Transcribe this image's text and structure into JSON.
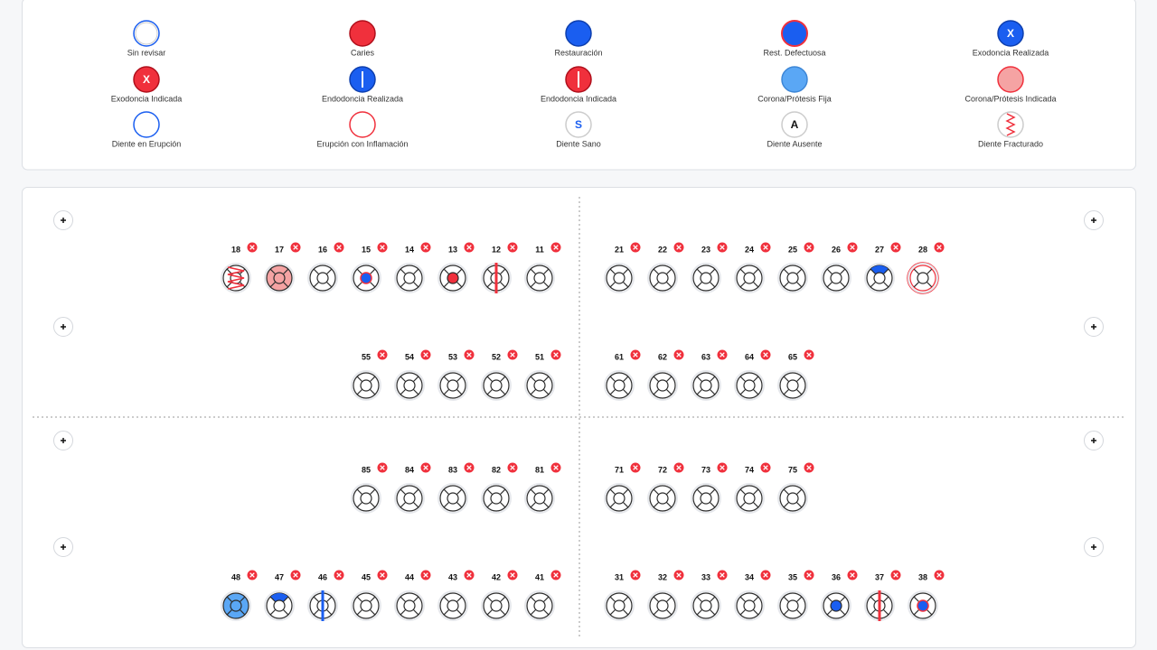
{
  "legend": [
    {
      "label": "Sin revisar",
      "symbol": "sin-revisar"
    },
    {
      "label": "Caries",
      "symbol": "caries"
    },
    {
      "label": "Restauración",
      "symbol": "restauracion"
    },
    {
      "label": "Rest. Defectuosa",
      "symbol": "rest-defectuosa"
    },
    {
      "label": "Exodoncia Realizada",
      "symbol": "exodoncia-realizada",
      "letter": "X"
    },
    {
      "label": "Exodoncia Indicada",
      "symbol": "exodoncia-indicada",
      "letter": "X"
    },
    {
      "label": "Endodoncia Realizada",
      "symbol": "endo-realizada"
    },
    {
      "label": "Endodoncia Indicada",
      "symbol": "endo-indicada"
    },
    {
      "label": "Corona/Prótesis Fija",
      "symbol": "corona-fija"
    },
    {
      "label": "Corona/Prótesis Indicada",
      "symbol": "corona-indicada"
    },
    {
      "label": "Diente en Erupción",
      "symbol": "erupcion"
    },
    {
      "label": "Erupción con Inflamación",
      "symbol": "erupcion-inflamacion"
    },
    {
      "label": "Diente Sano",
      "symbol": "sano",
      "letter": "S"
    },
    {
      "label": "Diente Ausente",
      "symbol": "ausente",
      "letter": "A"
    },
    {
      "label": "Diente Fracturado",
      "symbol": "fracturado"
    }
  ],
  "rows": [
    {
      "left": [
        {
          "number": 18,
          "state": "fracturado"
        },
        {
          "number": 17,
          "state": "corona-indicada"
        },
        {
          "number": 16
        },
        {
          "number": 15,
          "state": "rest-defectuosa-centro"
        },
        {
          "number": 14
        },
        {
          "number": 13,
          "state": "caries-centro"
        },
        {
          "number": 12,
          "state": "endo-indicada"
        },
        {
          "number": 11
        }
      ],
      "right": [
        {
          "number": 21
        },
        {
          "number": 22
        },
        {
          "number": 23
        },
        {
          "number": 24
        },
        {
          "number": 25
        },
        {
          "number": 26
        },
        {
          "number": 27,
          "state": "restauracion-arriba"
        },
        {
          "number": 28,
          "state": "erupcion-inflamacion"
        }
      ]
    },
    {
      "left": [
        {
          "number": 55
        },
        {
          "number": 54
        },
        {
          "number": 53
        },
        {
          "number": 52
        },
        {
          "number": 51
        }
      ],
      "right": [
        {
          "number": 61
        },
        {
          "number": 62
        },
        {
          "number": 63
        },
        {
          "number": 64
        },
        {
          "number": 65
        }
      ]
    },
    {
      "left": [
        {
          "number": 85
        },
        {
          "number": 84
        },
        {
          "number": 83
        },
        {
          "number": 82
        },
        {
          "number": 81
        }
      ],
      "right": [
        {
          "number": 71
        },
        {
          "number": 72
        },
        {
          "number": 73
        },
        {
          "number": 74
        },
        {
          "number": 75
        }
      ]
    },
    {
      "left": [
        {
          "number": 48,
          "state": "corona-fija"
        },
        {
          "number": 47,
          "state": "restauracion-arriba"
        },
        {
          "number": 46,
          "state": "endo-realizada"
        },
        {
          "number": 45
        },
        {
          "number": 44
        },
        {
          "number": 43
        },
        {
          "number": 42
        },
        {
          "number": 41
        }
      ],
      "right": [
        {
          "number": 31
        },
        {
          "number": 32
        },
        {
          "number": 33
        },
        {
          "number": 34
        },
        {
          "number": 35
        },
        {
          "number": 36,
          "state": "restauracion-centro"
        },
        {
          "number": 37,
          "state": "endo-indicada"
        },
        {
          "number": 38,
          "state": "rest-defectuosa-centro"
        }
      ]
    }
  ]
}
